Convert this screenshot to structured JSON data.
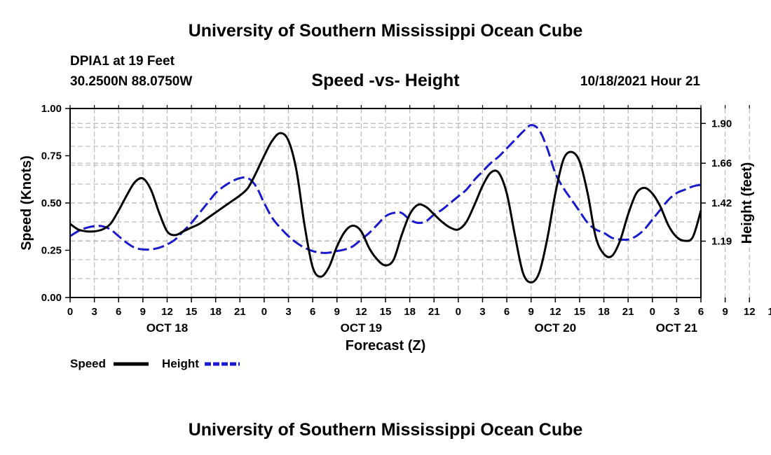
{
  "header": {
    "title": "University of Southern Mississippi Ocean Cube",
    "station": "DPIA1 at 19 Feet",
    "coords": "30.2500N  88.0750W",
    "subtitle": "Speed -vs- Height",
    "datetime": "10/18/2021 Hour 21"
  },
  "footer": {
    "title": "University of Southern Mississippi Ocean Cube"
  },
  "colors": {
    "speed": "#000000",
    "height": "#1a1acc",
    "grid": "#bdbdbd"
  },
  "chart_data": {
    "type": "line",
    "xlabel": "Forecast (Z)",
    "ylabel_left": "Speed (Knots)",
    "ylabel_right": "Height (feet)",
    "x_range_hours": [
      0,
      78
    ],
    "ylim_left": [
      0,
      1
    ],
    "ylim_right": [
      0.85,
      1.99
    ],
    "left_ticks": [
      "0.00",
      "0.25",
      "0.50",
      "0.75",
      "1.00"
    ],
    "left_tick_values": [
      0,
      0.25,
      0.5,
      0.75,
      1.0
    ],
    "right_ticks": [
      "1.19",
      "1.42",
      "1.66",
      "1.90"
    ],
    "right_tick_values": [
      1.19,
      1.42,
      1.66,
      1.9
    ],
    "x_ticks": [
      "0",
      "3",
      "6",
      "9",
      "12",
      "15",
      "18",
      "21",
      "0",
      "3",
      "6",
      "9",
      "12",
      "15",
      "18",
      "21",
      "0",
      "3",
      "6",
      "9",
      "12",
      "15",
      "18",
      "21",
      "0",
      "3",
      "6",
      "9",
      "12",
      "15",
      "18",
      "21",
      "0",
      "3",
      "6"
    ],
    "day_labels": [
      {
        "label": "OCT 18",
        "hour": 12
      },
      {
        "label": "OCT 19",
        "hour": 36
      },
      {
        "label": "OCT 20",
        "hour": 60
      },
      {
        "label": "OCT 21",
        "hour": 75
      }
    ],
    "series": [
      {
        "name": "Speed",
        "axis": "left",
        "style": "solid",
        "x": [
          0,
          1,
          2,
          3,
          4,
          5,
          6,
          7,
          8,
          9,
          10,
          11,
          12,
          13,
          14,
          15,
          16,
          17,
          18,
          19,
          20,
          21,
          22,
          23,
          24,
          25,
          26,
          27,
          28,
          29,
          30,
          31,
          32,
          33,
          34,
          35,
          36,
          37,
          38,
          39,
          40,
          41,
          42,
          43,
          44,
          45,
          46,
          47,
          48,
          49,
          50,
          51,
          52,
          53,
          54,
          55,
          56,
          57,
          58,
          59,
          60,
          61,
          62,
          63,
          64,
          65,
          66,
          67,
          68,
          69,
          70,
          71,
          72,
          73,
          74,
          75,
          76,
          77,
          78
        ],
        "values": [
          0.39,
          0.36,
          0.35,
          0.35,
          0.36,
          0.39,
          0.46,
          0.54,
          0.61,
          0.63,
          0.57,
          0.45,
          0.35,
          0.33,
          0.35,
          0.37,
          0.39,
          0.42,
          0.45,
          0.48,
          0.51,
          0.54,
          0.58,
          0.66,
          0.75,
          0.83,
          0.87,
          0.83,
          0.67,
          0.38,
          0.16,
          0.11,
          0.16,
          0.27,
          0.35,
          0.38,
          0.35,
          0.26,
          0.2,
          0.17,
          0.2,
          0.33,
          0.44,
          0.49,
          0.48,
          0.44,
          0.4,
          0.37,
          0.36,
          0.4,
          0.49,
          0.59,
          0.66,
          0.66,
          0.55,
          0.33,
          0.13,
          0.08,
          0.13,
          0.31,
          0.55,
          0.73,
          0.77,
          0.72,
          0.55,
          0.32,
          0.23,
          0.22,
          0.3,
          0.44,
          0.55,
          0.58,
          0.55,
          0.48,
          0.38,
          0.32,
          0.3,
          0.32,
          0.46
        ]
      },
      {
        "name": "Height",
        "axis": "right",
        "style": "dashed",
        "x": [
          0,
          1,
          2,
          3,
          4,
          5,
          6,
          7,
          8,
          9,
          10,
          11,
          12,
          13,
          14,
          15,
          16,
          17,
          18,
          19,
          20,
          21,
          22,
          23,
          24,
          25,
          26,
          27,
          28,
          29,
          30,
          31,
          32,
          33,
          34,
          35,
          36,
          37,
          38,
          39,
          40,
          41,
          42,
          43,
          44,
          45,
          46,
          47,
          48,
          49,
          50,
          51,
          52,
          53,
          54,
          55,
          56,
          57,
          58,
          59,
          60,
          61,
          62,
          63,
          64,
          65,
          66,
          67,
          68,
          69,
          70,
          71,
          72,
          73,
          74,
          75,
          76,
          77,
          78
        ],
        "values": [
          1.22,
          1.25,
          1.27,
          1.28,
          1.28,
          1.26,
          1.22,
          1.18,
          1.15,
          1.14,
          1.14,
          1.15,
          1.17,
          1.2,
          1.25,
          1.3,
          1.36,
          1.42,
          1.48,
          1.52,
          1.55,
          1.57,
          1.57,
          1.52,
          1.42,
          1.33,
          1.27,
          1.22,
          1.18,
          1.15,
          1.13,
          1.12,
          1.12,
          1.13,
          1.14,
          1.16,
          1.2,
          1.24,
          1.29,
          1.34,
          1.36,
          1.36,
          1.32,
          1.3,
          1.31,
          1.35,
          1.38,
          1.42,
          1.46,
          1.5,
          1.56,
          1.61,
          1.66,
          1.7,
          1.75,
          1.8,
          1.85,
          1.89,
          1.86,
          1.75,
          1.6,
          1.51,
          1.44,
          1.37,
          1.3,
          1.26,
          1.24,
          1.21,
          1.2,
          1.2,
          1.22,
          1.26,
          1.32,
          1.38,
          1.44,
          1.48,
          1.5,
          1.52,
          1.53
        ]
      }
    ]
  }
}
